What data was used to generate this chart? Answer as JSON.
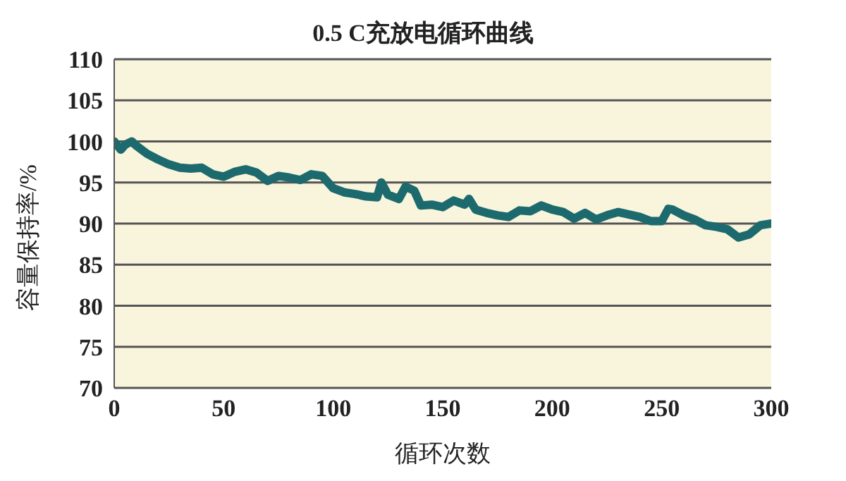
{
  "chart_data": {
    "type": "line",
    "title": "0.5 C充放电循环曲线",
    "xlabel": "循环次数",
    "ylabel": "容量保持率/%",
    "x": [
      0,
      3,
      5,
      8,
      10,
      15,
      20,
      25,
      30,
      35,
      40,
      45,
      50,
      55,
      60,
      65,
      70,
      75,
      80,
      85,
      90,
      95,
      100,
      105,
      110,
      115,
      120,
      122,
      125,
      130,
      133,
      137,
      140,
      145,
      150,
      155,
      160,
      162,
      165,
      170,
      175,
      180,
      185,
      190,
      195,
      200,
      205,
      210,
      215,
      220,
      225,
      230,
      235,
      240,
      245,
      250,
      253,
      255,
      260,
      265,
      270,
      275,
      280,
      285,
      290,
      295,
      300
    ],
    "series": [
      {
        "color": "#1d6a6e",
        "values": [
          100,
          99,
          99.6,
          100,
          99.5,
          98.5,
          97.8,
          97.2,
          96.8,
          96.7,
          96.8,
          96,
          95.7,
          96.3,
          96.6,
          96.2,
          95.2,
          95.8,
          95.6,
          95.3,
          96,
          95.8,
          94.3,
          93.8,
          93.6,
          93.3,
          93.2,
          95,
          93.5,
          93,
          94.5,
          94,
          92.2,
          92.3,
          92,
          92.8,
          92.3,
          93,
          91.7,
          91.3,
          91,
          90.8,
          91.6,
          91.5,
          92.2,
          91.7,
          91.4,
          90.6,
          91.3,
          90.5,
          91,
          91.4,
          91.1,
          90.8,
          90.3,
          90.3,
          91.8,
          91.7,
          91,
          90.5,
          89.8,
          89.6,
          89.3,
          88.3,
          88.7,
          89.8,
          90
        ]
      }
    ],
    "xlim": [
      0,
      300
    ],
    "xticks": [
      0,
      50,
      100,
      150,
      200,
      250,
      300
    ],
    "ylim": [
      70,
      110
    ],
    "yticks": [
      70,
      75,
      80,
      85,
      90,
      95,
      100,
      105,
      110
    ],
    "grid": "y",
    "marker": "none",
    "line_style": "solid",
    "legend": false
  }
}
